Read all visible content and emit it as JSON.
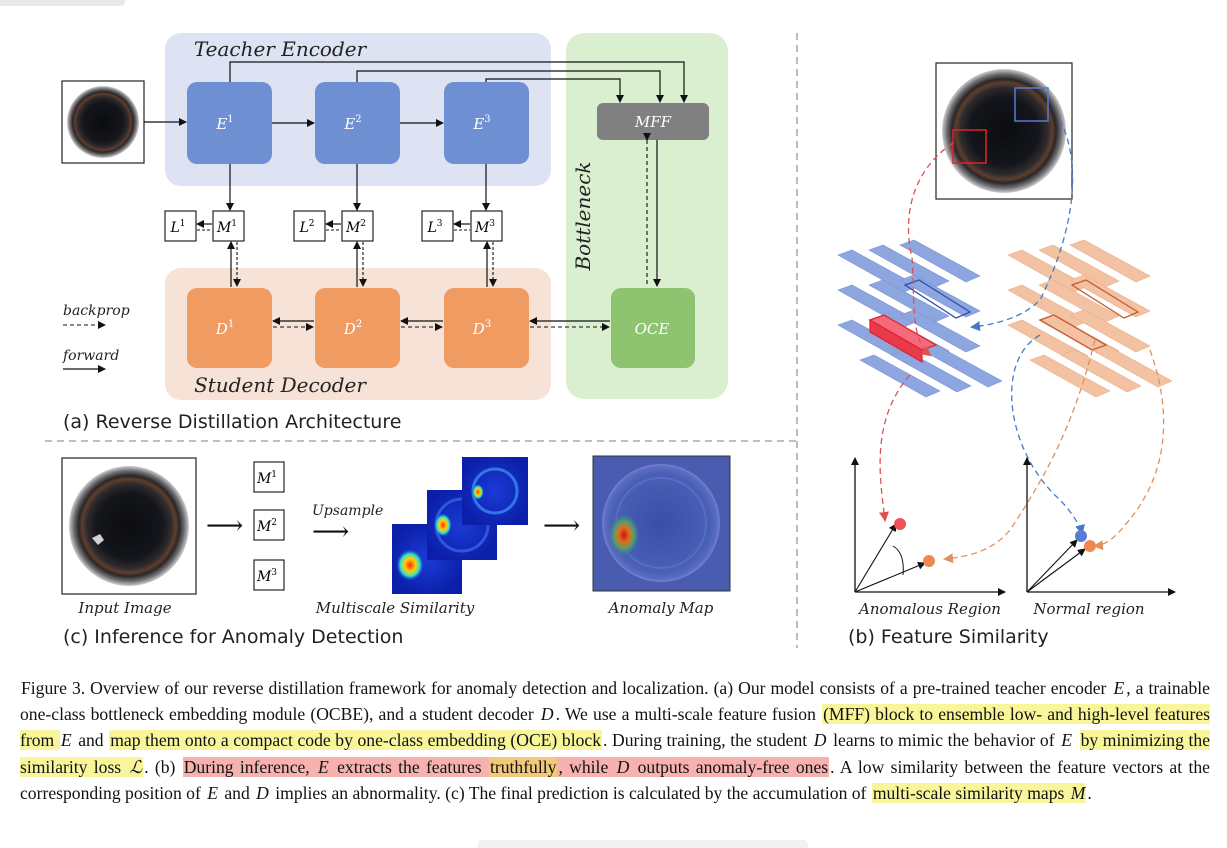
{
  "panel_a": {
    "teacher_title": "Teacher Encoder",
    "student_title": "Student Decoder",
    "bottleneck_title": "Bottleneck",
    "encoders": [
      "E",
      "E",
      "E"
    ],
    "decoders": [
      "D",
      "D",
      "D"
    ],
    "superscripts": [
      "1",
      "2",
      "3"
    ],
    "losses": [
      "L",
      "L",
      "L"
    ],
    "sims": [
      "M",
      "M",
      "M"
    ],
    "mff": "MFF",
    "oce": "OCE",
    "legend_backprop": "backprop",
    "legend_forward": "forward",
    "caption": "(a) Reverse Distillation Architecture"
  },
  "panel_b": {
    "label_anomalous": "Anomalous Region",
    "label_normal": "Normal region",
    "caption": "(b) Feature Similarity"
  },
  "panel_c": {
    "input_label": "Input Image",
    "upsample": "Upsample",
    "multiscale_label": "Multiscale Similarity",
    "anomaly_label": "Anomaly Map",
    "caption": "(c) Inference for Anomaly Detection"
  },
  "colors": {
    "teacher_bg": "#dde3f2",
    "encoder": "#6f8fd3",
    "student_bg": "#f6e2d6",
    "decoder": "#ef9b62",
    "bottleneck_bg": "#daefcf",
    "oce": "#8ec46f",
    "mff": "#808080",
    "highlight_yellow": "#f9f59a",
    "highlight_pink": "#f7b2b0",
    "highlight_orange": "#f2c97a"
  },
  "caption": {
    "t1": "Figure 3. Overview of our reverse distillation framework for anomaly detection and localization. (a) Our model consists of a pre-trained teacher encoder ",
    "v1": "E",
    "t2": ", a trainable one-class bottleneck embedding module (OCBE), and a student decoder ",
    "v2": "D",
    "t3": ". We use a multi-scale feature fusion ",
    "h1": "(MFF) block to ensemble low- and high-level features from ",
    "v3": "E",
    "t4": " and ",
    "h2": "map them onto a compact code by one-class embedding (OCE) block",
    "t5": ". During training, the student ",
    "v4": "D",
    "t6": " learns to mimic the behavior of ",
    "v5": "E",
    "t7": " ",
    "h3": "by minimizing the similarity loss ",
    "v6": "ℒ",
    "t8": ". (b) ",
    "h4": "During inference, ",
    "v7": "E",
    "h5": " extracts the features ",
    "h6": "truthfully",
    "h7": ", while ",
    "v8": "D",
    "h8": " outputs anomaly-free ones",
    "t9": ". A low similarity between the feature vectors at the corresponding position of ",
    "v9": "E",
    "t10": " and ",
    "v10": "D",
    "t11": " implies an abnormality. (c) The final prediction is calculated by the accumulation of ",
    "h9": "multi-scale similarity maps ",
    "v11": "M",
    "t12": "."
  }
}
